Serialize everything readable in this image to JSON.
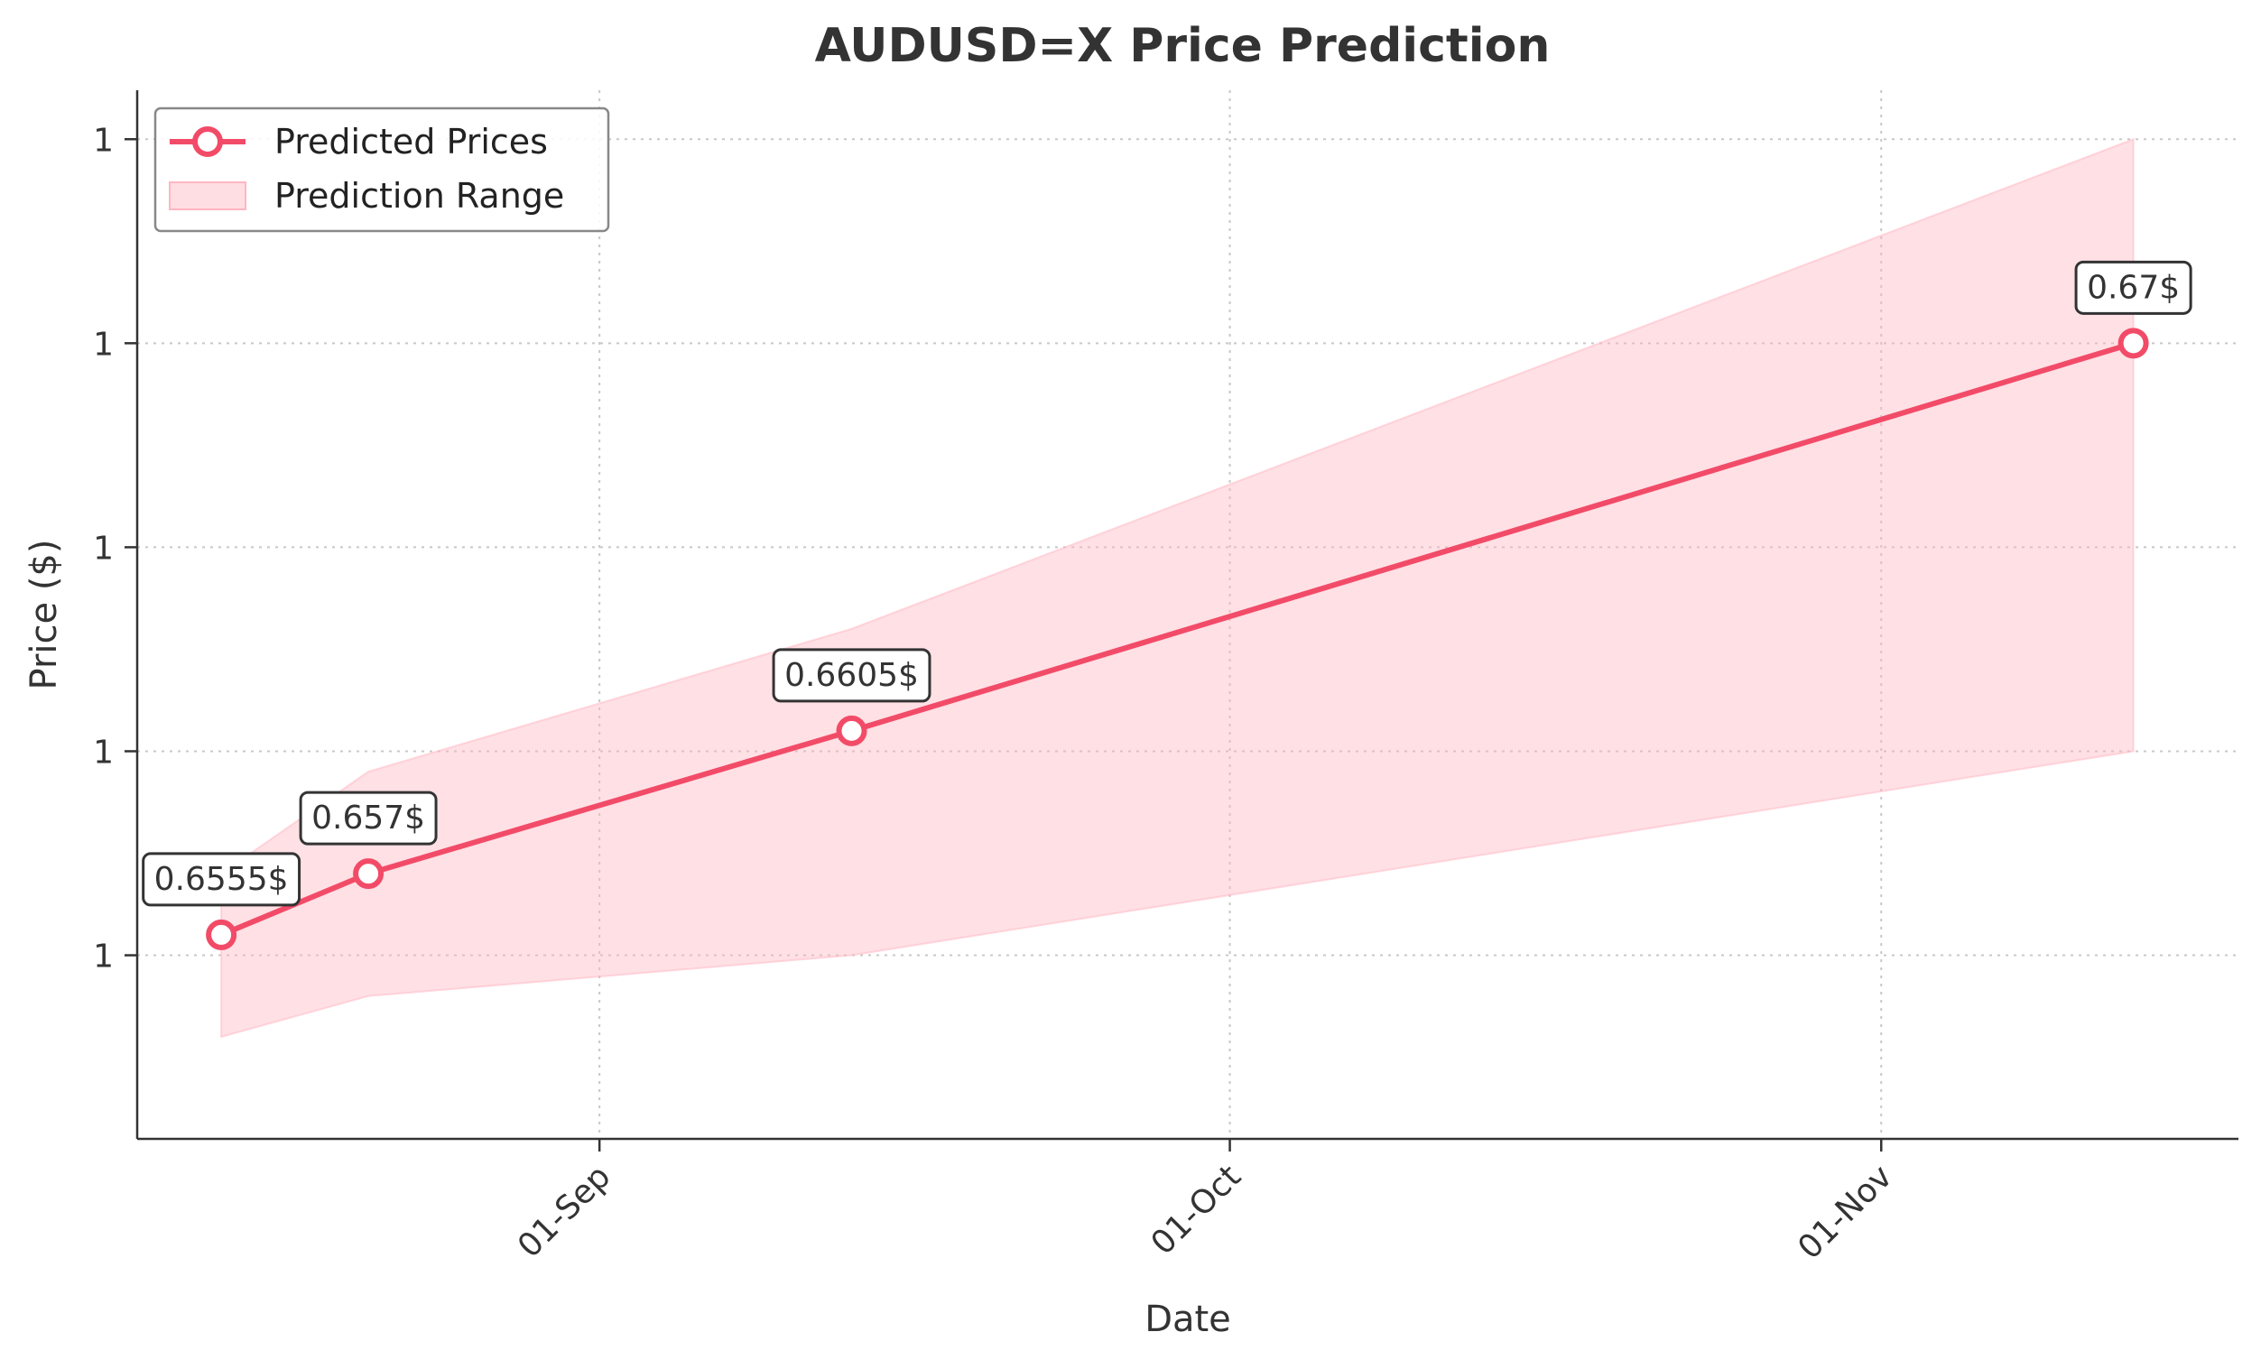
{
  "chart_data": {
    "type": "line",
    "title": "AUDUSD=X Price Prediction",
    "xlabel": "Date",
    "ylabel": "Price ($)",
    "x_ticks": [
      {
        "date": "2024-09-01",
        "label": "01-Sep"
      },
      {
        "date": "2024-10-01",
        "label": "01-Oct"
      },
      {
        "date": "2024-11-01",
        "label": "01-Nov"
      }
    ],
    "y_ticks": [
      {
        "value": 0.655,
        "label": "1"
      },
      {
        "value": 0.66,
        "label": "1"
      },
      {
        "value": 0.665,
        "label": "1"
      },
      {
        "value": 0.67,
        "label": "1"
      },
      {
        "value": 0.675,
        "label": "1"
      }
    ],
    "ylim": [
      0.6505,
      0.6762
    ],
    "xlim": [
      "2024-08-10",
      "2024-11-18"
    ],
    "grid": true,
    "legend_position": "top-left",
    "series": [
      {
        "name": "Predicted Prices",
        "color": "#f24b68",
        "points": [
          {
            "date": "2024-08-14",
            "value": 0.6555,
            "label": "0.6555$"
          },
          {
            "date": "2024-08-21",
            "value": 0.657,
            "label": "0.657$"
          },
          {
            "date": "2024-09-13",
            "value": 0.6605,
            "label": "0.6605$"
          },
          {
            "date": "2024-11-13",
            "value": 0.67,
            "label": "0.67$"
          }
        ]
      }
    ],
    "range": {
      "name": "Prediction Range",
      "color": "#ffb6c1",
      "points": [
        {
          "date": "2024-08-14",
          "lower": 0.653,
          "upper": 0.657
        },
        {
          "date": "2024-08-21",
          "lower": 0.654,
          "upper": 0.6595
        },
        {
          "date": "2024-09-13",
          "lower": 0.655,
          "upper": 0.663
        },
        {
          "date": "2024-11-13",
          "lower": 0.66,
          "upper": 0.675
        }
      ]
    }
  }
}
